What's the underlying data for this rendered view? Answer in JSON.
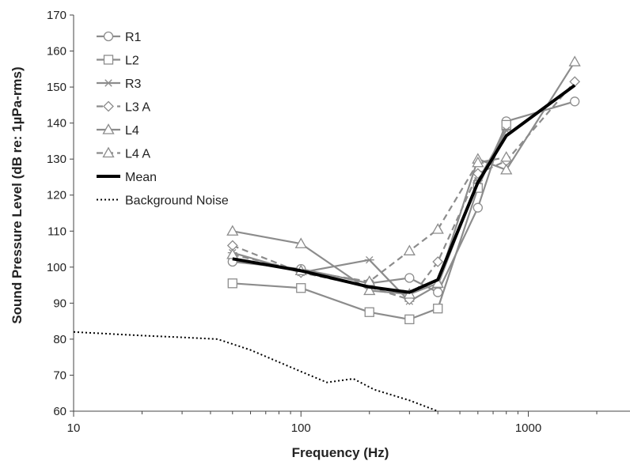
{
  "chart_data": {
    "type": "line",
    "xlabel": "Frequency (Hz)",
    "ylabel": "Sound Pressure Level (dB re: 1µPa-rms)",
    "x_scale": "log",
    "xlim": [
      10,
      2800
    ],
    "ylim": [
      60,
      170
    ],
    "x_ticks": [
      10,
      100,
      1000
    ],
    "y_ticks": [
      60,
      70,
      80,
      90,
      100,
      110,
      120,
      130,
      140,
      150,
      160,
      170
    ],
    "grid": false,
    "legend_position": "top-left",
    "series": [
      {
        "name": "R1",
        "marker": "circle",
        "dash": "solid",
        "color": "#8c8c8c",
        "x": [
          50,
          100,
          200,
          300,
          400,
          600,
          800,
          1600
        ],
        "y": [
          101.5,
          99.5,
          95.5,
          97,
          93,
          116.5,
          140.5,
          146
        ]
      },
      {
        "name": "L2",
        "marker": "square",
        "dash": "solid",
        "color": "#8c8c8c",
        "x": [
          50,
          100,
          200,
          300,
          400,
          600,
          800
        ],
        "y": [
          95.5,
          94.2,
          87.5,
          85.5,
          88.5,
          122,
          139.5
        ]
      },
      {
        "name": "R3",
        "marker": "asterisk",
        "dash": "solid",
        "color": "#8c8c8c",
        "x": [
          50,
          100,
          200,
          300,
          400,
          600,
          800
        ],
        "y": [
          104,
          98.5,
          102,
          90.5,
          95,
          124,
          138
        ]
      },
      {
        "name": "L3 A",
        "marker": "diamond",
        "dash": "dashed",
        "color": "#8c8c8c",
        "x": [
          50,
          100,
          200,
          300,
          400,
          600,
          800,
          1600
        ],
        "y": [
          106,
          98.5,
          94.5,
          91,
          101.5,
          126,
          129.5,
          151.5
        ]
      },
      {
        "name": "L4",
        "marker": "triangle",
        "dash": "solid",
        "color": "#8c8c8c",
        "x": [
          50,
          100,
          200,
          300,
          400,
          600,
          800,
          1600
        ],
        "y": [
          110,
          106.5,
          93.5,
          92.5,
          95.5,
          130,
          127,
          157
        ]
      },
      {
        "name": "L4 A",
        "marker": "triangle",
        "dash": "dashed",
        "color": "#8c8c8c",
        "x": [
          50,
          100,
          200,
          300,
          400,
          600,
          800
        ],
        "y": [
          103.5,
          99,
          96,
          104.5,
          110.5,
          129,
          130.5
        ]
      },
      {
        "name": "Mean",
        "marker": "none",
        "dash": "solid",
        "color": "#000000",
        "width": 4,
        "x": [
          50,
          100,
          200,
          300,
          400,
          600,
          800,
          1600
        ],
        "y": [
          102.3,
          99,
          94.5,
          93,
          96.5,
          123.5,
          136.5,
          150.5
        ]
      },
      {
        "name": "Background Noise",
        "marker": "none",
        "dash": "dotted",
        "color": "#000000",
        "width": 2,
        "x": [
          10,
          20,
          30,
          43,
          60,
          100,
          130,
          170,
          210,
          300,
          400
        ],
        "y": [
          82,
          81,
          80.5,
          80,
          77,
          71,
          68,
          69,
          66,
          63,
          60
        ]
      }
    ]
  }
}
